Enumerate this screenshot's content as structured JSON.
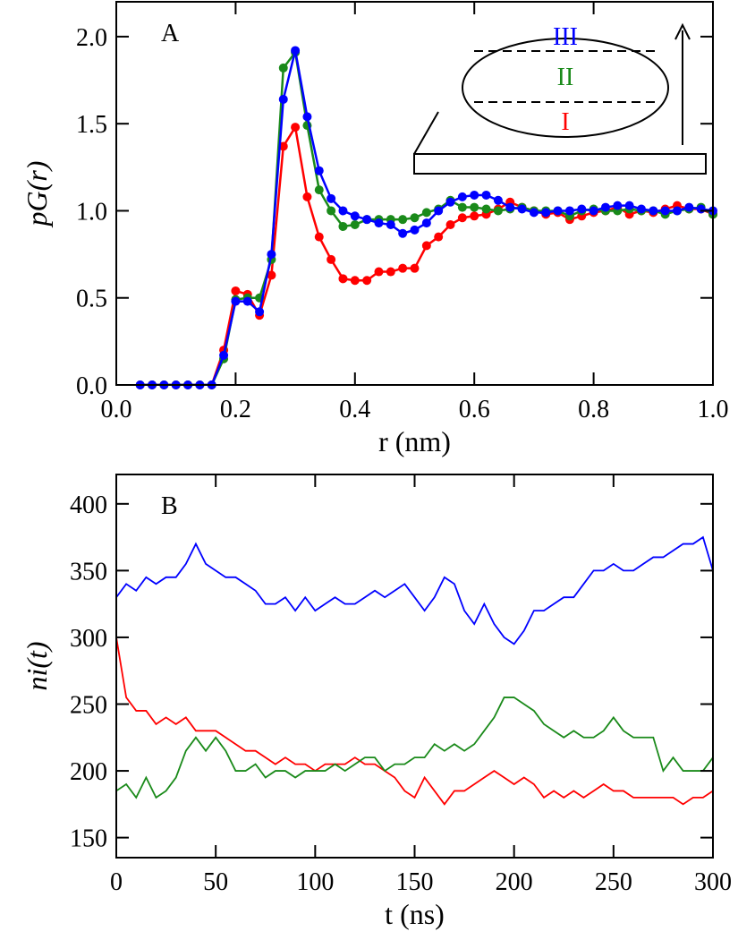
{
  "chart_data": [
    {
      "type": "line",
      "panel_label": "A",
      "x_label": "r (nm)",
      "y_label": "pG(r)",
      "markers": true,
      "inset_labels": [
        "III",
        "II",
        "I"
      ],
      "x": [
        0.04,
        0.06,
        0.08,
        0.1,
        0.12,
        0.14,
        0.16,
        0.18,
        0.2,
        0.22,
        0.24,
        0.26,
        0.28,
        0.3,
        0.32,
        0.34,
        0.36,
        0.38,
        0.4,
        0.42,
        0.44,
        0.46,
        0.48,
        0.5,
        0.52,
        0.54,
        0.56,
        0.58,
        0.6,
        0.62,
        0.64,
        0.66,
        0.68,
        0.7,
        0.72,
        0.74,
        0.76,
        0.78,
        0.8,
        0.82,
        0.84,
        0.86,
        0.88,
        0.9,
        0.92,
        0.94,
        0.96,
        0.98,
        1.0
      ],
      "series": [
        {
          "color": "#ff0000",
          "values": [
            0,
            0,
            0,
            0,
            0,
            0,
            0,
            0.2,
            0.54,
            0.52,
            0.4,
            0.63,
            1.37,
            1.48,
            1.08,
            0.85,
            0.72,
            0.61,
            0.6,
            0.6,
            0.65,
            0.65,
            0.67,
            0.67,
            0.8,
            0.85,
            0.92,
            0.96,
            0.97,
            0.98,
            1.01,
            1.05,
            1.02,
            1.0,
            0.98,
            0.99,
            0.95,
            0.97,
            0.99,
            1.0,
            1.02,
            0.98,
            1.0,
            0.99,
            1.01,
            1.03,
            1.01,
            1.01,
            0.98
          ]
        },
        {
          "color": "#1a8a1a",
          "values": [
            0,
            0,
            0,
            0,
            0,
            0,
            0,
            0.15,
            0.49,
            0.5,
            0.5,
            0.72,
            1.82,
            1.91,
            1.49,
            1.12,
            1.0,
            0.91,
            0.92,
            0.95,
            0.95,
            0.95,
            0.95,
            0.96,
            0.99,
            1.01,
            1.06,
            1.02,
            1.02,
            1.01,
            1.0,
            1.01,
            1.02,
            1.0,
            1.0,
            1.0,
            0.97,
            1.0,
            1.01,
            1.0,
            1.0,
            1.01,
            1.0,
            1.0,
            0.98,
            1.0,
            1.01,
            1.02,
            0.98
          ]
        },
        {
          "color": "#0000ff",
          "values": [
            0,
            0,
            0,
            0,
            0,
            0,
            0,
            0.17,
            0.48,
            0.48,
            0.42,
            0.75,
            1.64,
            1.92,
            1.54,
            1.23,
            1.07,
            1.0,
            0.97,
            0.95,
            0.93,
            0.92,
            0.87,
            0.89,
            0.93,
            1.0,
            1.05,
            1.08,
            1.09,
            1.09,
            1.06,
            1.02,
            1.01,
            0.99,
            0.99,
            1.0,
            1.0,
            1.01,
            1.0,
            1.02,
            1.03,
            1.03,
            1.01,
            1.0,
            1.0,
            1.0,
            1.02,
            1.01,
            1.0
          ]
        }
      ],
      "xlim": [
        0,
        1
      ],
      "ylim": [
        0,
        2.2
      ],
      "xticks": [
        {
          "value": 0,
          "label": "0.0"
        },
        0.2,
        0.4,
        0.6,
        0.8,
        {
          "value": 1,
          "label": "1.0"
        }
      ],
      "yticks": [
        {
          "value": 0,
          "label": "0.0"
        },
        0.5,
        {
          "value": 1,
          "label": "1.0"
        },
        1.5,
        {
          "value": 2,
          "label": "2.0"
        }
      ]
    },
    {
      "type": "line",
      "panel_label": "B",
      "x_label": "t (ns)",
      "y_label": "ni(t)",
      "markers": false,
      "x": [
        0,
        5,
        10,
        15,
        20,
        25,
        30,
        35,
        40,
        45,
        50,
        55,
        60,
        65,
        70,
        75,
        80,
        85,
        90,
        95,
        100,
        105,
        110,
        115,
        120,
        125,
        130,
        135,
        140,
        145,
        150,
        155,
        160,
        165,
        170,
        175,
        180,
        185,
        190,
        195,
        200,
        205,
        210,
        215,
        220,
        225,
        230,
        235,
        240,
        245,
        250,
        255,
        260,
        265,
        270,
        275,
        280,
        285,
        290,
        295,
        300
      ],
      "series": [
        {
          "color": "#0000ff",
          "values": [
            330,
            340,
            335,
            345,
            340,
            345,
            345,
            355,
            370,
            355,
            350,
            345,
            345,
            340,
            335,
            325,
            325,
            330,
            320,
            330,
            320,
            325,
            330,
            325,
            325,
            330,
            335,
            330,
            335,
            340,
            330,
            320,
            330,
            345,
            340,
            320,
            310,
            325,
            310,
            300,
            295,
            305,
            320,
            320,
            325,
            330,
            330,
            340,
            350,
            350,
            355,
            350,
            350,
            355,
            360,
            360,
            365,
            370,
            370,
            375,
            350
          ]
        },
        {
          "color": "#ff0000",
          "values": [
            300,
            255,
            245,
            245,
            235,
            240,
            235,
            240,
            230,
            230,
            230,
            225,
            220,
            215,
            215,
            210,
            205,
            210,
            205,
            205,
            200,
            205,
            205,
            205,
            210,
            205,
            205,
            200,
            195,
            185,
            180,
            195,
            185,
            175,
            185,
            185,
            190,
            195,
            200,
            195,
            190,
            195,
            190,
            180,
            185,
            180,
            185,
            180,
            185,
            190,
            185,
            185,
            180,
            180,
            180,
            180,
            180,
            175,
            180,
            180,
            185
          ]
        },
        {
          "color": "#1a8a1a",
          "values": [
            185,
            190,
            180,
            195,
            180,
            185,
            195,
            215,
            225,
            215,
            225,
            215,
            200,
            200,
            205,
            195,
            200,
            200,
            195,
            200,
            200,
            200,
            205,
            200,
            205,
            210,
            210,
            200,
            205,
            205,
            210,
            210,
            220,
            215,
            220,
            215,
            220,
            230,
            240,
            255,
            255,
            250,
            245,
            235,
            230,
            225,
            230,
            225,
            225,
            230,
            240,
            230,
            225,
            225,
            225,
            200,
            210,
            200,
            200,
            200,
            210
          ]
        }
      ],
      "xlim": [
        0,
        300
      ],
      "ylim": [
        135,
        422
      ],
      "xticks": [
        0,
        50,
        100,
        150,
        200,
        250,
        300
      ],
      "yticks": [
        150,
        200,
        250,
        300,
        350,
        400
      ]
    }
  ]
}
